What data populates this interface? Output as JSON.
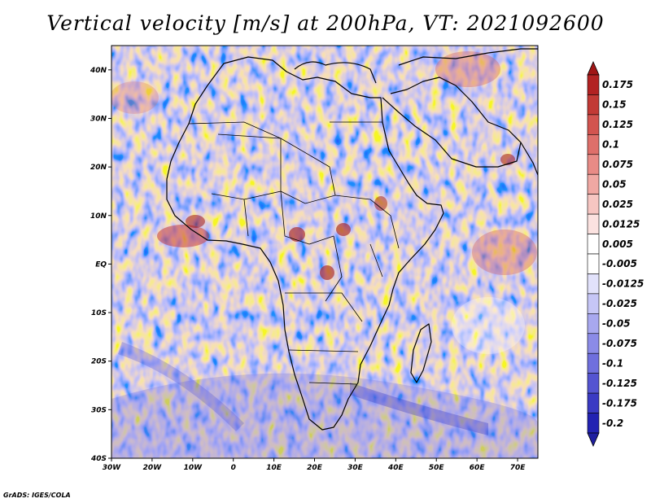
{
  "title": "Vertical velocity [m/s] at 200hPa, VT: 2021092600",
  "credit": "GrADS: IGES/COLA",
  "map": {
    "lon_range": [
      -30,
      75
    ],
    "lat_range": [
      -40,
      45
    ],
    "lon_ticks": [
      "30W",
      "20W",
      "10W",
      "0",
      "10E",
      "20E",
      "30E",
      "40E",
      "50E",
      "60E",
      "70E"
    ],
    "lat_ticks": [
      "40N",
      "30N",
      "20N",
      "10N",
      "EQ",
      "10S",
      "20S",
      "30S",
      "40S"
    ],
    "field": "vertical velocity",
    "units": "m/s",
    "level": "200hPa",
    "valid_time": "2021092600"
  },
  "colorbar": {
    "labels": [
      "0.175",
      "0.15",
      "0.125",
      "0.1",
      "0.075",
      "0.05",
      "0.025",
      "0.0125",
      "0.005",
      "-0.005",
      "-0.0125",
      "-0.025",
      "-0.05",
      "-0.075",
      "-0.1",
      "-0.125",
      "-0.175",
      "-0.2"
    ],
    "colors": [
      "#b22222",
      "#c23a35",
      "#d2544f",
      "#de6f6a",
      "#e88b86",
      "#f0a8a3",
      "#f6c6c2",
      "#fbe2e0",
      "#ffffff",
      "#ffffff",
      "#e2e2fb",
      "#c6c6f6",
      "#a8a8ef",
      "#8b8be7",
      "#6f6fdd",
      "#5454d1",
      "#3a3ac3",
      "#2222b2"
    ],
    "top_cap_color": "#a01515",
    "bottom_cap_color": "#1e1ea0"
  }
}
